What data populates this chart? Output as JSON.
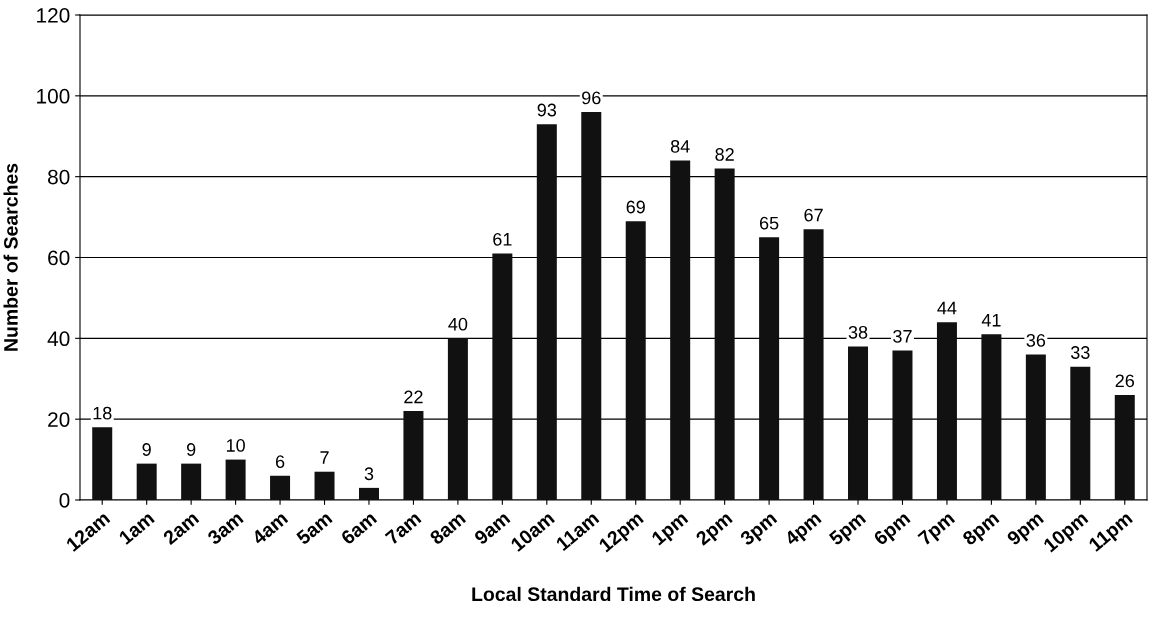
{
  "chart_data": {
    "type": "bar",
    "xlabel": "Local Standard Time of Search",
    "ylabel": "Number of Searches",
    "categories": [
      "12am",
      "1am",
      "2am",
      "3am",
      "4am",
      "5am",
      "6am",
      "7am",
      "8am",
      "9am",
      "10am",
      "11am",
      "12pm",
      "1pm",
      "2pm",
      "3pm",
      "4pm",
      "5pm",
      "6pm",
      "7pm",
      "8pm",
      "9pm",
      "10pm",
      "11pm"
    ],
    "values": [
      18,
      9,
      9,
      10,
      6,
      7,
      3,
      22,
      40,
      61,
      93,
      96,
      69,
      84,
      82,
      65,
      67,
      38,
      37,
      44,
      41,
      36,
      33,
      26
    ],
    "color": "#111111",
    "ylim": [
      0,
      120
    ],
    "yticks": [
      0,
      20,
      40,
      60,
      80,
      100,
      120
    ],
    "grid": "y",
    "data_labels": true
  }
}
